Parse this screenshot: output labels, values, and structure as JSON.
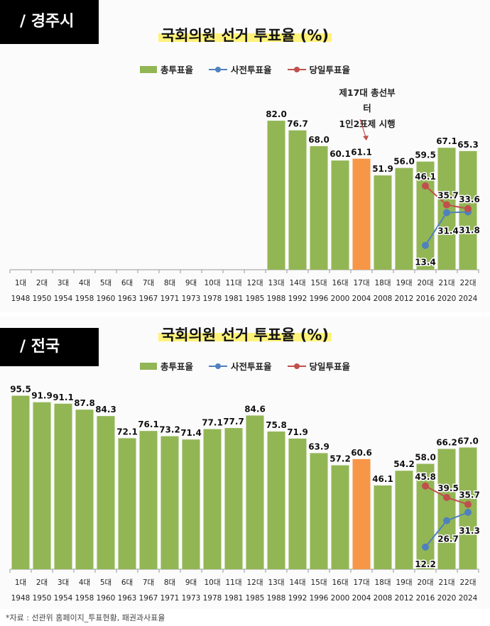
{
  "source_note": "*자료 : 선관위 홈페이지_투표현황, 패권과사표율",
  "legend": {
    "total": "총투표율",
    "early": "사전투표율",
    "sameday": "당일투표율"
  },
  "colors": {
    "bar": "#92b654",
    "highlight_bar": "#f79646",
    "early": "#4f81bd",
    "sameday": "#c0504d"
  },
  "charts": [
    {
      "region": "/ 경주시",
      "title": "국회의원 선거 투표율 (%)",
      "annotation": [
        "제17대 총선부터",
        "1인2표제 시행"
      ]
    },
    {
      "region": "/ 전국",
      "title": "국회의원 선거 투표율 (%)"
    }
  ],
  "chart_data": [
    {
      "type": "bar",
      "title": "국회의원 선거 투표율 (%)",
      "categories": [
        "1대",
        "2대",
        "3대",
        "4대",
        "5대",
        "6대",
        "7대",
        "8대",
        "9대",
        "10대",
        "11대",
        "12대",
        "13대",
        "14대",
        "15대",
        "16대",
        "17대",
        "18대",
        "19대",
        "20대",
        "21대",
        "22대"
      ],
      "years": [
        "1948",
        "1950",
        "1954",
        "1958",
        "1960",
        "1963",
        "1967",
        "1971",
        "1973",
        "1978",
        "1981",
        "1985",
        "1988",
        "1992",
        "1996",
        "2000",
        "2004",
        "2008",
        "2012",
        "2016",
        "2020",
        "2024"
      ],
      "highlight_category": "17대",
      "series": [
        {
          "name": "총투표율",
          "type": "bar",
          "values": [
            null,
            null,
            null,
            null,
            null,
            null,
            null,
            null,
            null,
            null,
            null,
            null,
            82.0,
            76.7,
            68.0,
            60.1,
            61.1,
            51.9,
            56.0,
            59.5,
            67.1,
            65.3
          ]
        },
        {
          "name": "사전투표율",
          "type": "line",
          "values": [
            null,
            null,
            null,
            null,
            null,
            null,
            null,
            null,
            null,
            null,
            null,
            null,
            null,
            null,
            null,
            null,
            null,
            null,
            null,
            13.4,
            31.4,
            31.8
          ]
        },
        {
          "name": "당일투표율",
          "type": "line",
          "values": [
            null,
            null,
            null,
            null,
            null,
            null,
            null,
            null,
            null,
            null,
            null,
            null,
            null,
            null,
            null,
            null,
            null,
            null,
            null,
            46.1,
            35.7,
            33.6
          ]
        }
      ],
      "ylim": [
        0,
        100
      ]
    },
    {
      "type": "bar",
      "title": "국회의원 선거 투표율 (%)",
      "categories": [
        "1대",
        "2대",
        "3대",
        "4대",
        "5대",
        "6대",
        "7대",
        "8대",
        "9대",
        "10대",
        "11대",
        "12대",
        "13대",
        "14대",
        "15대",
        "16대",
        "17대",
        "18대",
        "19대",
        "20대",
        "21대",
        "22대"
      ],
      "years": [
        "1948",
        "1950",
        "1954",
        "1958",
        "1960",
        "1963",
        "1967",
        "1971",
        "1973",
        "1978",
        "1981",
        "1985",
        "1988",
        "1992",
        "1996",
        "2000",
        "2004",
        "2008",
        "2012",
        "2016",
        "2020",
        "2024"
      ],
      "highlight_category": "17대",
      "series": [
        {
          "name": "총투표율",
          "type": "bar",
          "values": [
            95.5,
            91.9,
            91.1,
            87.8,
            84.3,
            72.1,
            76.1,
            73.2,
            71.4,
            77.1,
            77.7,
            84.6,
            75.8,
            71.9,
            63.9,
            57.2,
            60.6,
            46.1,
            54.2,
            58.0,
            66.2,
            67.0
          ]
        },
        {
          "name": "사전투표율",
          "type": "line",
          "values": [
            null,
            null,
            null,
            null,
            null,
            null,
            null,
            null,
            null,
            null,
            null,
            null,
            null,
            null,
            null,
            null,
            null,
            null,
            null,
            12.2,
            26.7,
            31.3
          ]
        },
        {
          "name": "당일투표율",
          "type": "line",
          "values": [
            null,
            null,
            null,
            null,
            null,
            null,
            null,
            null,
            null,
            null,
            null,
            null,
            null,
            null,
            null,
            null,
            null,
            null,
            null,
            45.8,
            39.5,
            35.7
          ]
        }
      ],
      "ylim": [
        0,
        100
      ]
    }
  ]
}
